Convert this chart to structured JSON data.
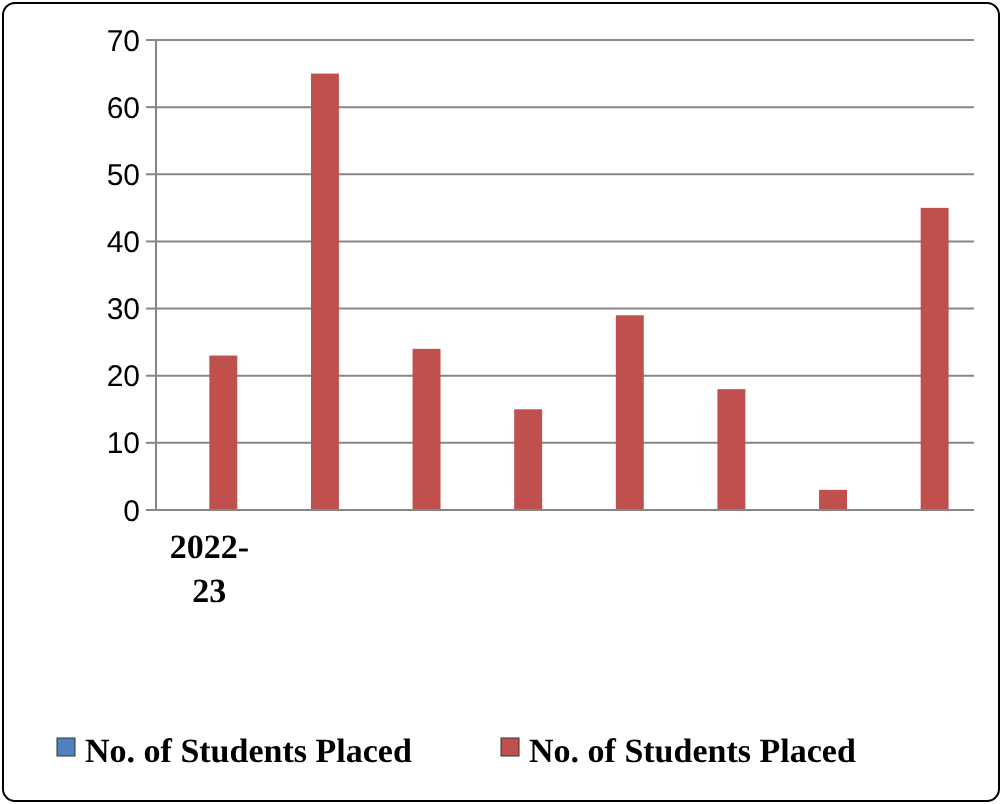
{
  "chart_data": {
    "type": "bar",
    "categories": [
      "2022-23",
      null,
      null,
      null,
      null,
      null,
      null,
      null
    ],
    "series": [
      {
        "name": "No. of Students Placed",
        "color": "#4f81bd",
        "values": [
          null,
          null,
          null,
          null,
          null,
          null,
          null,
          null
        ]
      },
      {
        "name": "No. of Students Placed",
        "color": "#c0504d",
        "values": [
          23,
          65,
          24,
          15,
          29,
          18,
          3,
          45
        ]
      }
    ],
    "ylim": [
      0,
      70
    ],
    "yticks": [
      0,
      10,
      20,
      30,
      40,
      50,
      60,
      70
    ],
    "grid": "y",
    "legend": "bottom"
  }
}
